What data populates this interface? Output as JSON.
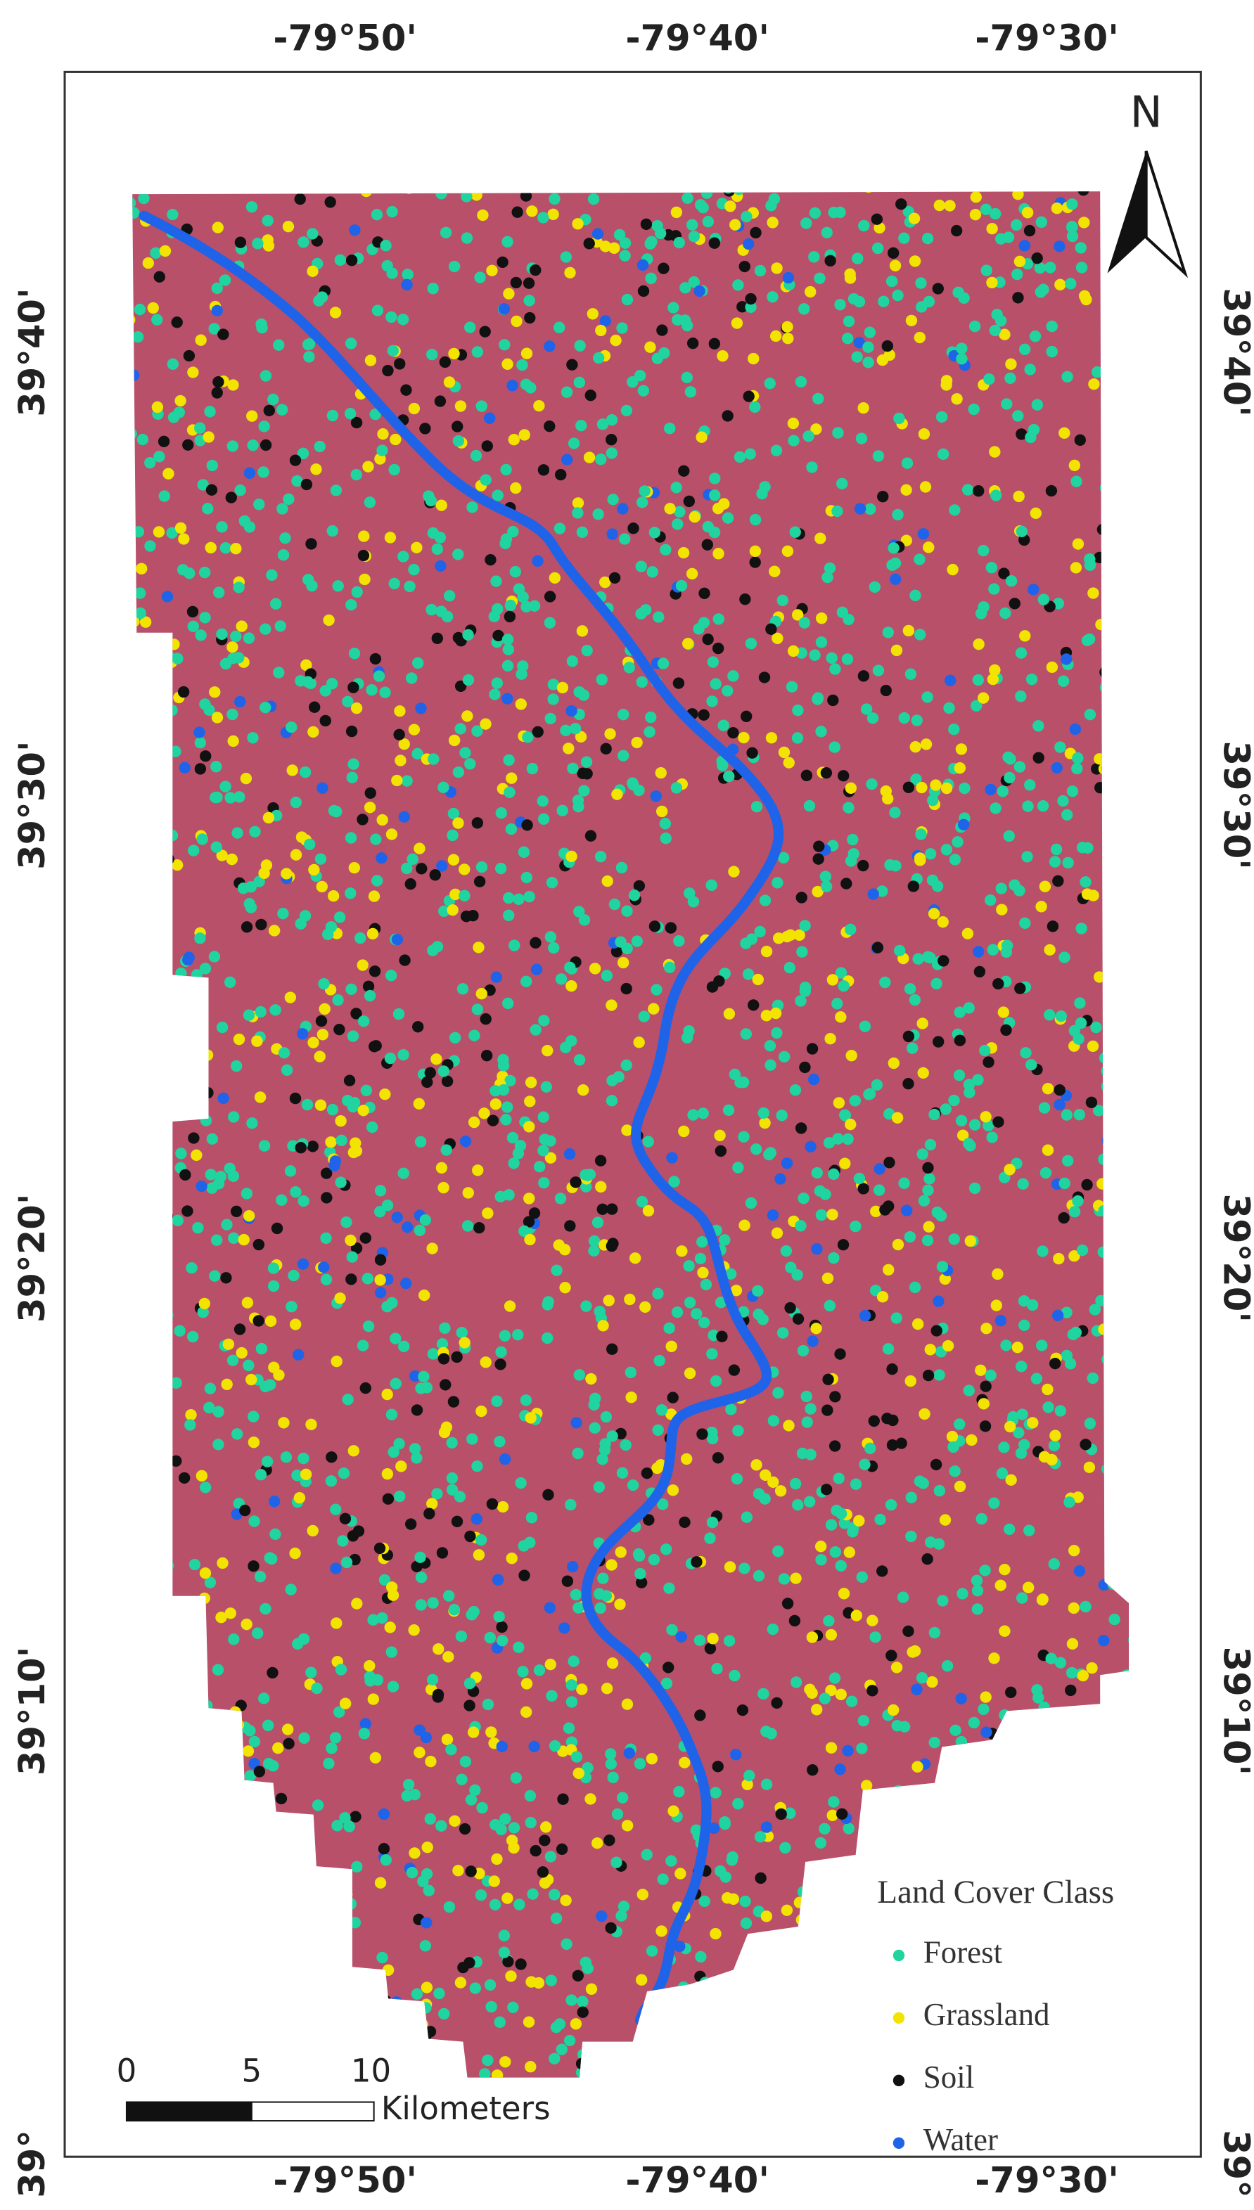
{
  "map": {
    "graticule": {
      "top": [
        "-79°50'",
        "-79°40'",
        "-79°30'"
      ],
      "bottom": [
        "-79°50'",
        "-79°40'",
        "-79°30'"
      ],
      "left": [
        "39°40'",
        "39°30'",
        "39°20'",
        "39°10'",
        "39°"
      ],
      "right": [
        "39°40'",
        "39°30'",
        "39°20'",
        "39°10'",
        "39°"
      ]
    },
    "north_arrow": "N",
    "legend": {
      "title": "Land Cover Class",
      "items": [
        {
          "label": "Forest",
          "color": "#20d4a0"
        },
        {
          "label": "Grassland",
          "color": "#f2e400"
        },
        {
          "label": "Soil",
          "color": "#111111"
        },
        {
          "label": "Water",
          "color": "#1f63e8"
        }
      ]
    },
    "scale_bar": {
      "labels": [
        "0",
        "5",
        "10"
      ],
      "unit": "Kilometers"
    }
  }
}
